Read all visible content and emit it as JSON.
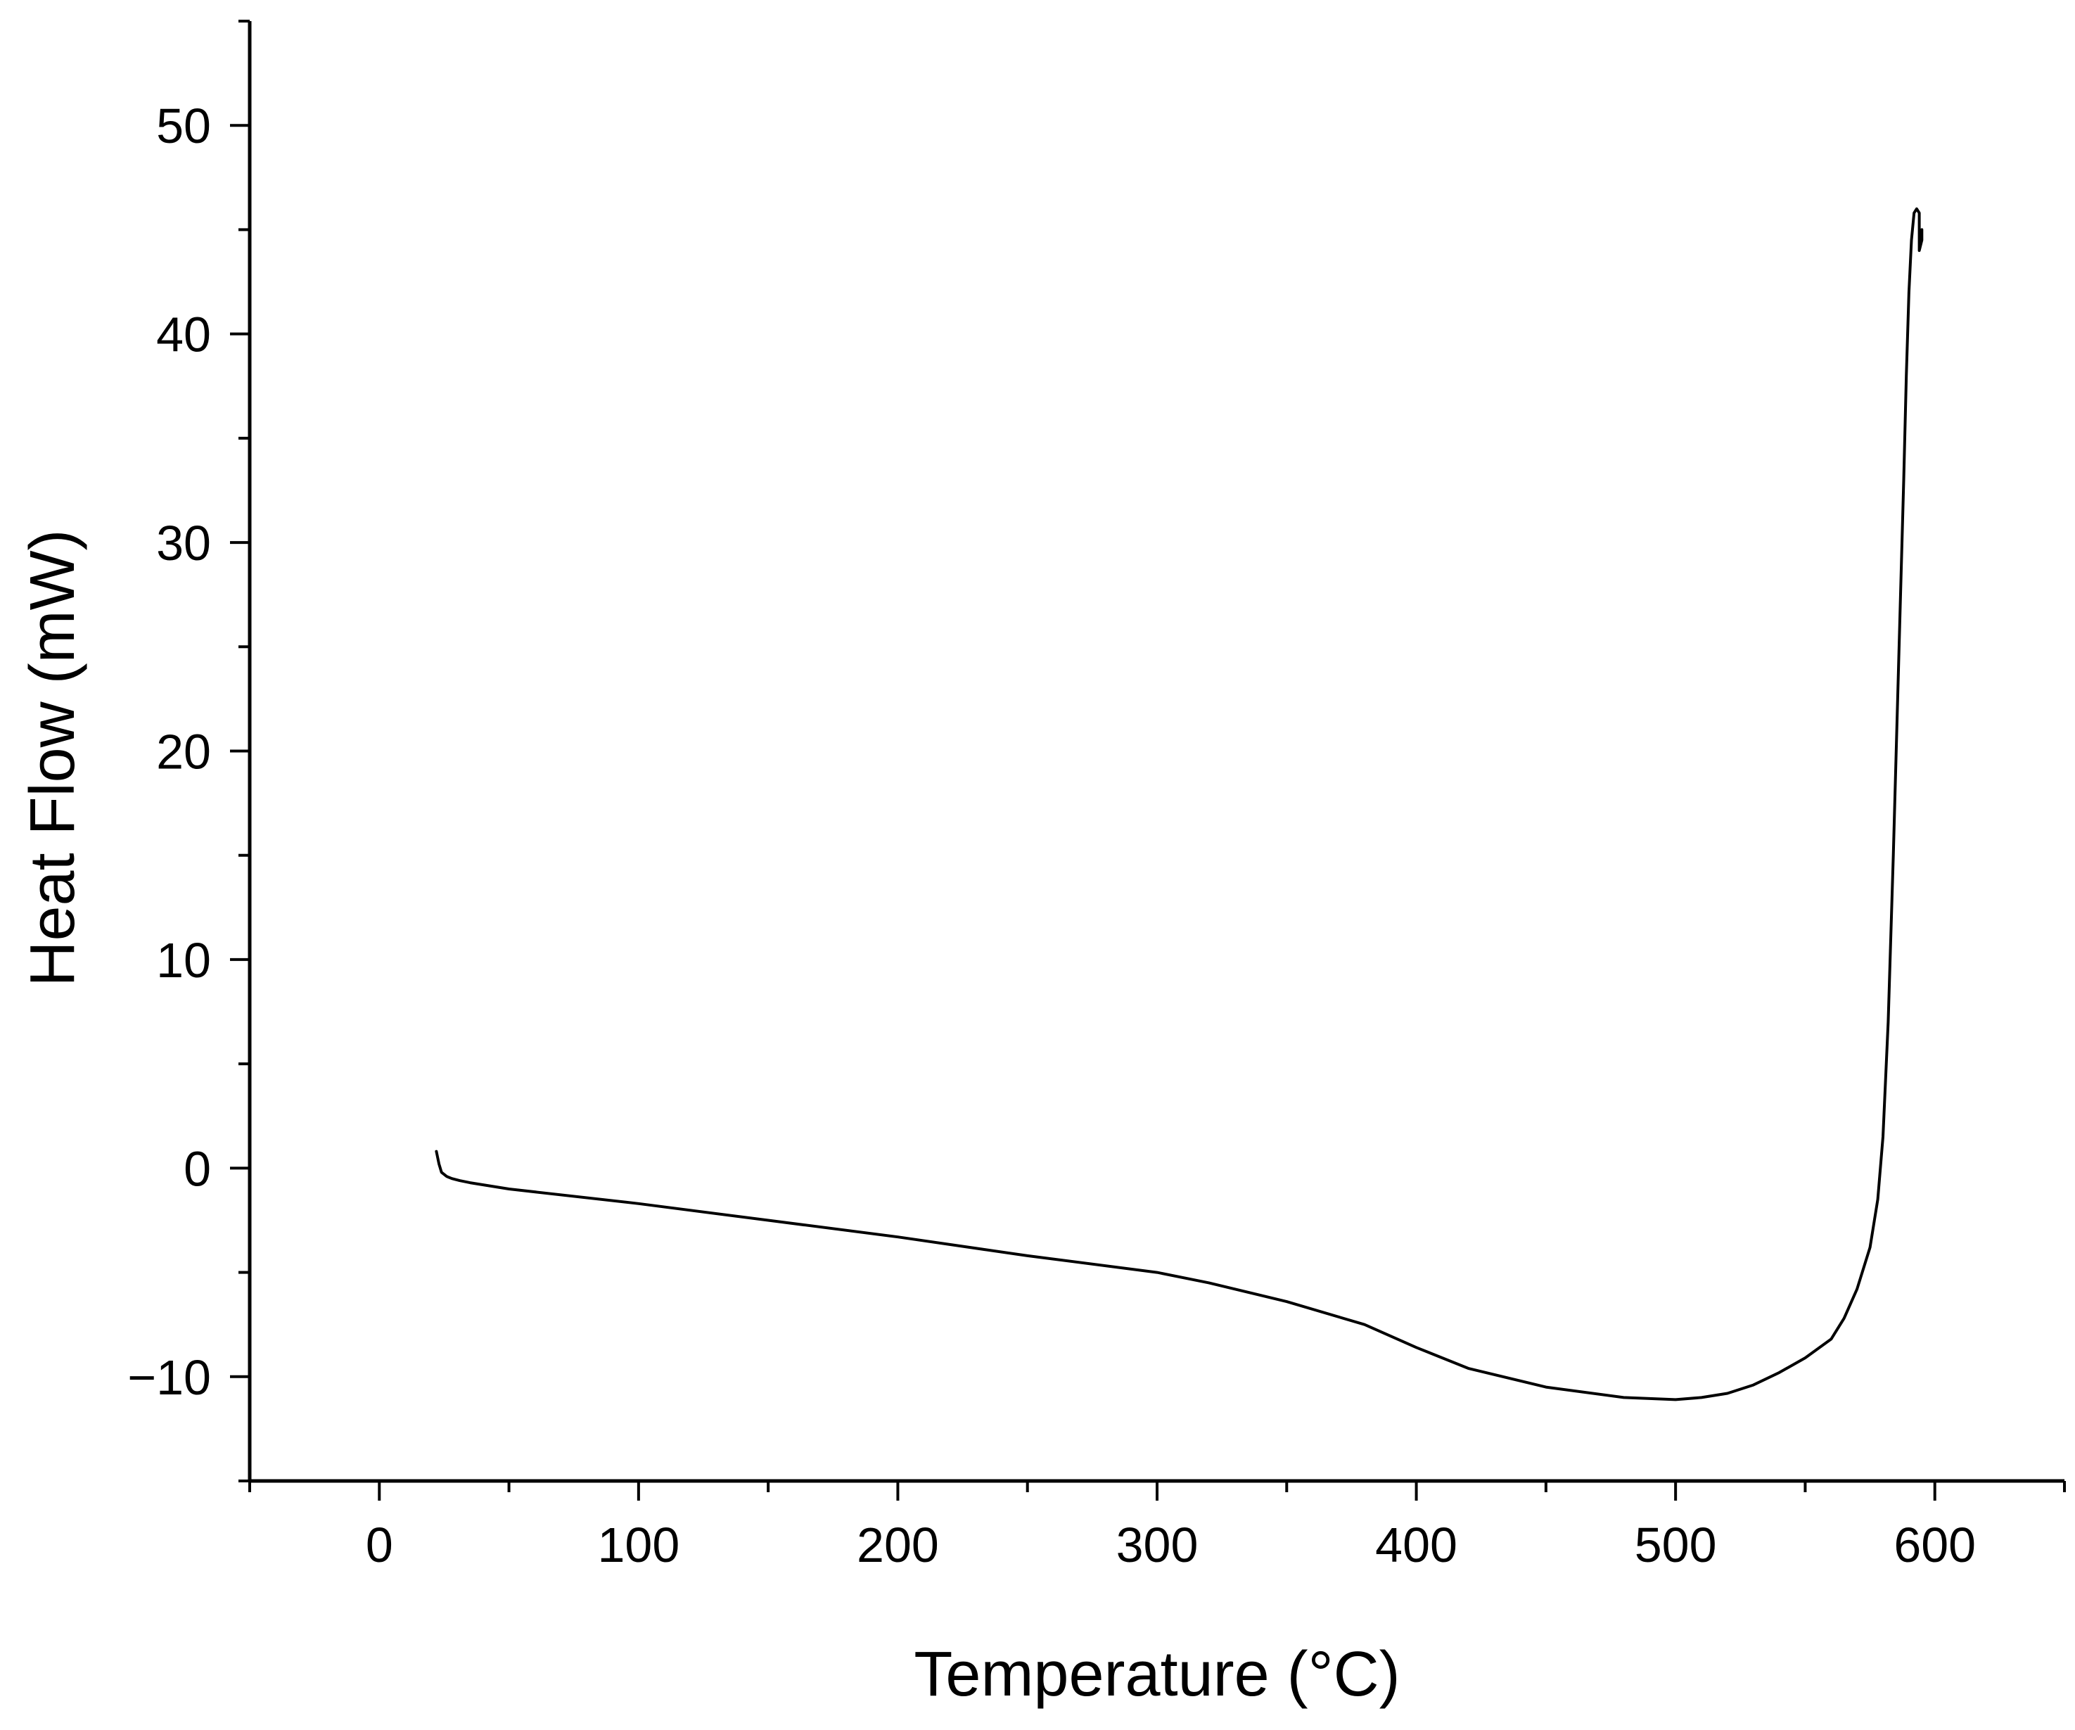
{
  "chart_data": {
    "type": "line",
    "title": "",
    "xlabel": "Temperature (°C)",
    "ylabel": "Heat Flow (mW)",
    "xlim": [
      -50,
      650
    ],
    "ylim": [
      -15,
      55
    ],
    "x_ticks": [
      0,
      100,
      200,
      300,
      400,
      500,
      600
    ],
    "x_tick_labels": [
      "0",
      "100",
      "200",
      "300",
      "400",
      "500",
      "600"
    ],
    "x_minor_step": 50,
    "y_ticks": [
      -10,
      0,
      10,
      20,
      30,
      40,
      50
    ],
    "y_tick_labels": [
      "−10",
      "0",
      "10",
      "20",
      "30",
      "40",
      "50"
    ],
    "y_minor_step": 5,
    "grid": false,
    "legend": "none",
    "line_color": "#000000",
    "series": [
      {
        "x": [
          22,
          23,
          24,
          26,
          28,
          31,
          35,
          50,
          100,
          150,
          200,
          250,
          300,
          320,
          350,
          380,
          400,
          420,
          450,
          480,
          500,
          510,
          520,
          530,
          540,
          550,
          560,
          565,
          570,
          575,
          578,
          580,
          582,
          584,
          586,
          588,
          589,
          590,
          591,
          592,
          593,
          594,
          594,
          595,
          595
        ],
        "y": [
          0.8,
          0.2,
          -0.2,
          -0.4,
          -0.5,
          -0.6,
          -0.7,
          -1.0,
          -1.7,
          -2.5,
          -3.3,
          -4.2,
          -5.0,
          -5.5,
          -6.4,
          -7.5,
          -8.6,
          -9.6,
          -10.5,
          -11.0,
          -11.1,
          -11.0,
          -10.8,
          -10.4,
          -9.8,
          -9.1,
          -8.2,
          -7.2,
          -5.8,
          -3.8,
          -1.5,
          1.5,
          7.0,
          15.0,
          24.0,
          33.0,
          38.0,
          42.0,
          44.5,
          45.8,
          46.0,
          45.8,
          44.0,
          44.5,
          45.0
        ]
      }
    ]
  }
}
